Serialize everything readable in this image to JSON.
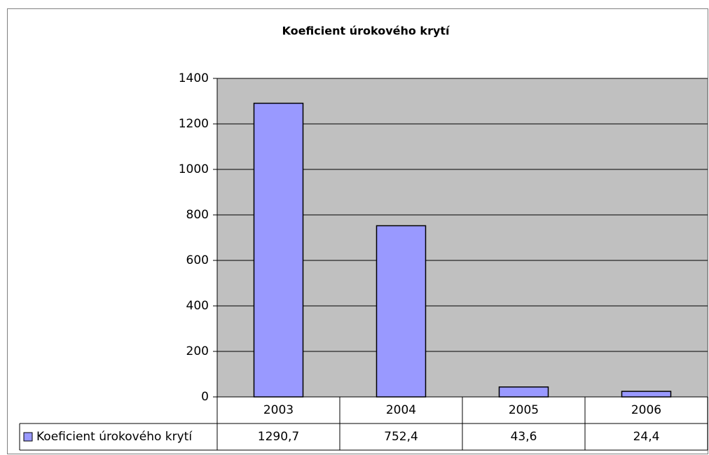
{
  "chart_data": {
    "type": "bar",
    "title": "Koeficient úrokového krytí",
    "categories": [
      "2003",
      "2004",
      "2005",
      "2006"
    ],
    "series": [
      {
        "name": "Koeficient úrokového krytí",
        "color": "#9999ff",
        "values": [
          1290.7,
          752.4,
          43.6,
          24.4
        ],
        "value_labels": [
          "1290,7",
          "752,4",
          "43,6",
          "24,4"
        ]
      }
    ],
    "ylim": [
      0,
      1400
    ],
    "yticks": [
      0,
      200,
      400,
      600,
      800,
      1000,
      1200,
      1400
    ],
    "grid": true
  }
}
